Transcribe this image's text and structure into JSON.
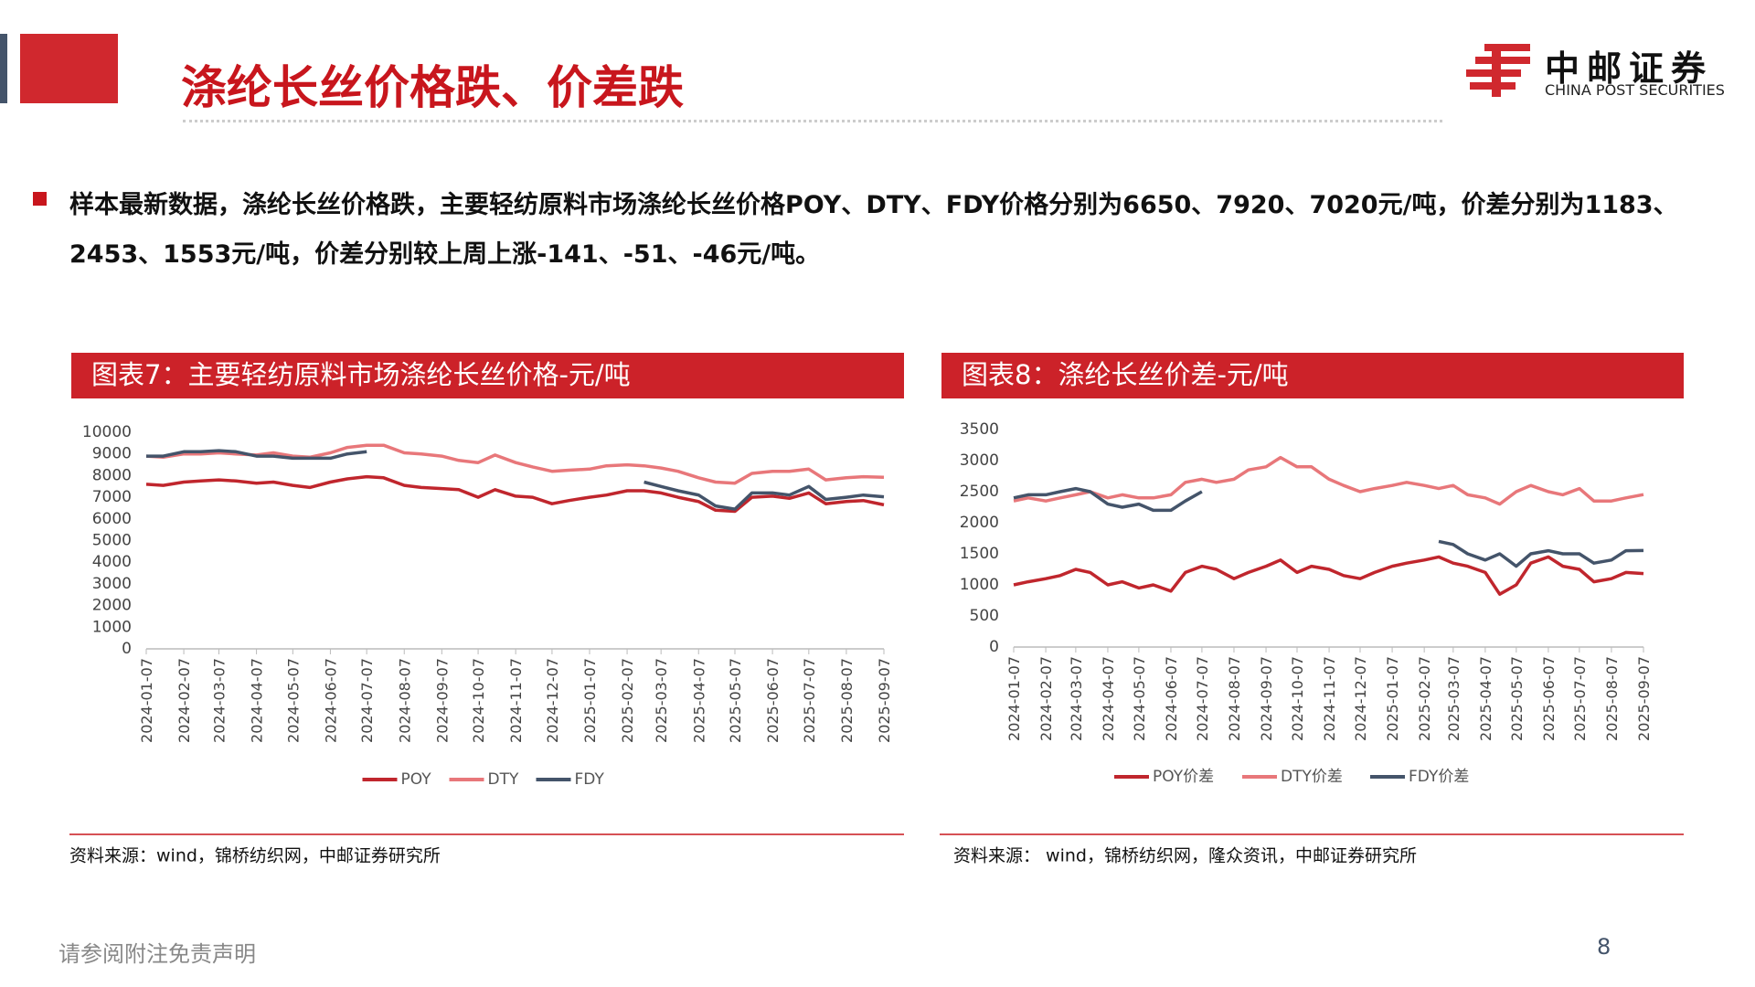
{
  "header": {
    "title": "涤纶长丝价格跌、价差跌",
    "logo_cn": "中邮证券",
    "logo_en": "CHINA POST SECURITIES"
  },
  "bullet": "样本最新数据，涤纶长丝价格跌，主要轻纺原料市场涤纶长丝价格POY、DTY、FDY价格分别为6650、7920、7020元/吨，价差分别为1183、2453、1553元/吨，价差分别较上周上涨-141、-51、-46元/吨。",
  "chart_data": [
    {
      "type": "line",
      "title": "图表7：主要轻纺原料市场涤纶长丝价格-元/吨",
      "source": "资料来源：wind，锦桥纺织网，中邮证券研究所",
      "x": [
        "2024-01-07",
        "2024-01-21",
        "2024-02-07",
        "2024-02-21",
        "2024-03-07",
        "2024-03-21",
        "2024-04-07",
        "2024-04-21",
        "2024-05-07",
        "2024-05-21",
        "2024-06-07",
        "2024-06-21",
        "2024-07-07",
        "2024-07-21",
        "2024-08-07",
        "2024-08-21",
        "2024-09-07",
        "2024-09-21",
        "2024-10-07",
        "2024-10-21",
        "2024-11-07",
        "2024-11-21",
        "2024-12-07",
        "2024-12-21",
        "2025-01-07",
        "2025-01-21",
        "2025-02-07",
        "2025-02-21",
        "2025-03-07",
        "2025-03-21",
        "2025-04-07",
        "2025-04-21",
        "2025-05-07",
        "2025-05-21",
        "2025-06-07",
        "2025-06-21",
        "2025-07-07",
        "2025-07-21",
        "2025-08-07",
        "2025-08-21",
        "2025-09-07"
      ],
      "series": [
        {
          "name": "POY",
          "color": "#c0262d",
          "values": [
            7600,
            7550,
            7700,
            7750,
            7800,
            7750,
            7650,
            7700,
            7550,
            7450,
            7700,
            7850,
            7950,
            7900,
            7550,
            7450,
            7400,
            7350,
            7000,
            7350,
            7050,
            7000,
            6700,
            6850,
            7000,
            7100,
            7300,
            7300,
            7200,
            7000,
            6800,
            6400,
            6350,
            7000,
            7050,
            6950,
            7200,
            6700,
            6800,
            6850,
            6650
          ]
        },
        {
          "name": "DTY",
          "color": "#e8777a",
          "values": [
            8900,
            8850,
            9000,
            9000,
            9050,
            9000,
            8950,
            9050,
            8900,
            8850,
            9050,
            9300,
            9400,
            9400,
            9050,
            9000,
            8900,
            8700,
            8600,
            8950,
            8600,
            8400,
            8200,
            8250,
            8300,
            8450,
            8500,
            8450,
            8350,
            8200,
            7900,
            7700,
            7650,
            8100,
            8200,
            8200,
            8300,
            7800,
            7900,
            7950,
            7920
          ]
        },
        {
          "name": "FDY",
          "color": "#44546a",
          "values": [
            8900,
            8900,
            9100,
            9100,
            9150,
            9100,
            8900,
            8900,
            8800,
            8800,
            8800,
            9000,
            9100,
            null,
            null,
            null,
            null,
            null,
            null,
            null,
            null,
            null,
            null,
            null,
            null,
            null,
            null,
            7700,
            7500,
            7300,
            7100,
            6600,
            6450,
            7200,
            7200,
            7100,
            7500,
            6900,
            7000,
            7100,
            7020
          ]
        }
      ],
      "xlim": [
        "2024-01-07",
        "2025-09-07"
      ],
      "xticks": [
        "2024-01-07",
        "2024-02-07",
        "2024-03-07",
        "2024-04-07",
        "2024-05-07",
        "2024-06-07",
        "2024-07-07",
        "2024-08-07",
        "2024-09-07",
        "2024-10-07",
        "2024-11-07",
        "2024-12-07",
        "2025-01-07",
        "2025-02-07",
        "2025-03-07",
        "2025-04-07",
        "2025-05-07",
        "2025-06-07",
        "2025-07-07",
        "2025-08-07",
        "2025-09-07"
      ],
      "ylim": [
        0,
        10000
      ],
      "yticks": [
        0,
        1000,
        2000,
        3000,
        4000,
        5000,
        6000,
        7000,
        8000,
        9000,
        10000
      ],
      "grid": false,
      "legend": "bottom"
    },
    {
      "type": "line",
      "title": "图表8：涤纶长丝价差-元/吨",
      "source": "资料来源： wind，锦桥纺织网，隆众资讯，中邮证券研究所",
      "x": [
        "2024-01-07",
        "2024-01-21",
        "2024-02-07",
        "2024-02-21",
        "2024-03-07",
        "2024-03-21",
        "2024-04-07",
        "2024-04-21",
        "2024-05-07",
        "2024-05-21",
        "2024-06-07",
        "2024-06-21",
        "2024-07-07",
        "2024-07-21",
        "2024-08-07",
        "2024-08-21",
        "2024-09-07",
        "2024-09-21",
        "2024-10-07",
        "2024-10-21",
        "2024-11-07",
        "2024-11-21",
        "2024-12-07",
        "2024-12-21",
        "2025-01-07",
        "2025-01-21",
        "2025-02-07",
        "2025-02-21",
        "2025-03-07",
        "2025-03-21",
        "2025-04-07",
        "2025-04-21",
        "2025-05-07",
        "2025-05-21",
        "2025-06-07",
        "2025-06-21",
        "2025-07-07",
        "2025-07-21",
        "2025-08-07",
        "2025-08-21",
        "2025-09-07"
      ],
      "series": [
        {
          "name": "POY价差",
          "color": "#c0262d",
          "values": [
            1000,
            1050,
            1100,
            1150,
            1250,
            1200,
            1000,
            1050,
            950,
            1000,
            900,
            1200,
            1300,
            1250,
            1100,
            1200,
            1300,
            1400,
            1200,
            1300,
            1250,
            1150,
            1100,
            1200,
            1300,
            1350,
            1400,
            1450,
            1350,
            1300,
            1200,
            850,
            1000,
            1350,
            1450,
            1300,
            1250,
            1050,
            1100,
            1200,
            1183
          ]
        },
        {
          "name": "DTY价差",
          "color": "#e8777a",
          "values": [
            2350,
            2400,
            2350,
            2400,
            2450,
            2500,
            2400,
            2450,
            2400,
            2400,
            2450,
            2650,
            2700,
            2650,
            2700,
            2850,
            2900,
            3050,
            2900,
            2900,
            2700,
            2600,
            2500,
            2550,
            2600,
            2650,
            2600,
            2550,
            2600,
            2450,
            2400,
            2300,
            2500,
            2600,
            2500,
            2450,
            2550,
            2350,
            2350,
            2400,
            2453
          ]
        },
        {
          "name": "FDY价差",
          "color": "#44546a",
          "values": [
            2400,
            2450,
            2450,
            2500,
            2550,
            2500,
            2300,
            2250,
            2300,
            2200,
            2200,
            2350,
            2500,
            null,
            null,
            null,
            null,
            null,
            null,
            null,
            null,
            null,
            null,
            null,
            null,
            null,
            null,
            1700,
            1650,
            1500,
            1400,
            1500,
            1300,
            1500,
            1550,
            1500,
            1500,
            1350,
            1400,
            1550,
            1553
          ]
        }
      ],
      "xlim": [
        "2024-01-07",
        "2025-09-07"
      ],
      "xticks": [
        "2024-01-07",
        "2024-02-07",
        "2024-03-07",
        "2024-04-07",
        "2024-05-07",
        "2024-06-07",
        "2024-07-07",
        "2024-08-07",
        "2024-09-07",
        "2024-10-07",
        "2024-11-07",
        "2024-12-07",
        "2025-01-07",
        "2025-02-07",
        "2025-03-07",
        "2025-04-07",
        "2025-05-07",
        "2025-06-07",
        "2025-07-07",
        "2025-08-07",
        "2025-09-07"
      ],
      "ylim": [
        0,
        3500
      ],
      "yticks": [
        0,
        500,
        1000,
        1500,
        2000,
        2500,
        3000,
        3500
      ],
      "grid": false,
      "legend": "bottom"
    }
  ],
  "footer": {
    "disclaimer": "请参阅附注免责声明",
    "page": "8"
  }
}
